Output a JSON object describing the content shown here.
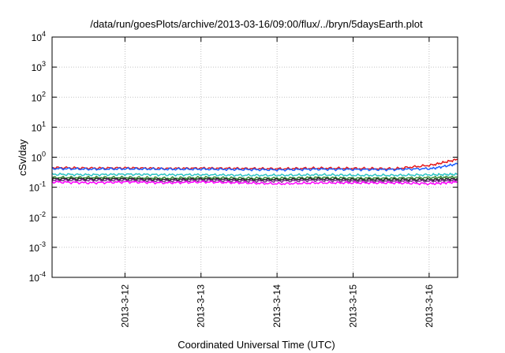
{
  "chart_data": {
    "type": "line",
    "title": "/data/run/goesPlots/archive/2013-03-16/09:00/flux/../bryn/5daysEarth.plot",
    "xlabel": "Coordinated Universal Time (UTC)",
    "ylabel": "cSv/day",
    "y_scale": "log",
    "grid": true,
    "xlim": [
      "2013-03-11T01:00",
      "2013-03-16T09:00"
    ],
    "ylim": [
      0.0001,
      10000
    ],
    "x_ticks": [
      {
        "value": "2013-03-12T00:00",
        "label": "2013-3-12"
      },
      {
        "value": "2013-03-13T00:00",
        "label": "2013-3-13"
      },
      {
        "value": "2013-03-14T00:00",
        "label": "2013-3-14"
      },
      {
        "value": "2013-03-15T00:00",
        "label": "2013-3-15"
      },
      {
        "value": "2013-03-16T00:00",
        "label": "2013-3-16"
      }
    ],
    "y_ticks": [
      {
        "value": 0.0001,
        "base": "10",
        "exp": "-4"
      },
      {
        "value": 0.001,
        "base": "10",
        "exp": "-3"
      },
      {
        "value": 0.01,
        "base": "10",
        "exp": "-2"
      },
      {
        "value": 0.1,
        "base": "10",
        "exp": "-1"
      },
      {
        "value": 1,
        "base": "10",
        "exp": "0"
      },
      {
        "value": 10,
        "base": "10",
        "exp": "1"
      },
      {
        "value": 100,
        "base": "10",
        "exp": "2"
      },
      {
        "value": 1000,
        "base": "10",
        "exp": "3"
      },
      {
        "value": 10000,
        "base": "10",
        "exp": "4"
      }
    ],
    "x": [
      "2013-03-11T01:00",
      "2013-03-11T13:00",
      "2013-03-12T01:00",
      "2013-03-12T13:00",
      "2013-03-13T01:00",
      "2013-03-13T13:00",
      "2013-03-14T01:00",
      "2013-03-14T13:00",
      "2013-03-15T01:00",
      "2013-03-15T13:00",
      "2013-03-16T01:00",
      "2013-03-16T09:00"
    ],
    "series": [
      {
        "color": "#e41a1c",
        "values": [
          0.45,
          0.43,
          0.44,
          0.42,
          0.43,
          0.42,
          0.41,
          0.43,
          0.42,
          0.41,
          0.55,
          0.85
        ]
      },
      {
        "color": "#1f5fff",
        "values": [
          0.42,
          0.4,
          0.41,
          0.4,
          0.4,
          0.39,
          0.38,
          0.4,
          0.39,
          0.39,
          0.42,
          0.6
        ]
      },
      {
        "color": "#2ec4c4",
        "values": [
          0.27,
          0.26,
          0.27,
          0.26,
          0.26,
          0.25,
          0.25,
          0.26,
          0.25,
          0.25,
          0.26,
          0.27
        ]
      },
      {
        "color": "#3a8f3a",
        "values": [
          0.21,
          0.21,
          0.21,
          0.2,
          0.21,
          0.2,
          0.2,
          0.21,
          0.2,
          0.2,
          0.21,
          0.22
        ]
      },
      {
        "color": "#222222",
        "values": [
          0.19,
          0.19,
          0.19,
          0.18,
          0.19,
          0.18,
          0.18,
          0.19,
          0.18,
          0.18,
          0.18,
          0.19
        ]
      },
      {
        "color": "#7b2d8e",
        "values": [
          0.17,
          0.17,
          0.17,
          0.16,
          0.17,
          0.16,
          0.16,
          0.17,
          0.16,
          0.16,
          0.16,
          0.17
        ]
      },
      {
        "color": "#ff00ff",
        "values": [
          0.15,
          0.14,
          0.15,
          0.14,
          0.15,
          0.14,
          0.13,
          0.14,
          0.14,
          0.14,
          0.13,
          0.15
        ]
      }
    ]
  }
}
